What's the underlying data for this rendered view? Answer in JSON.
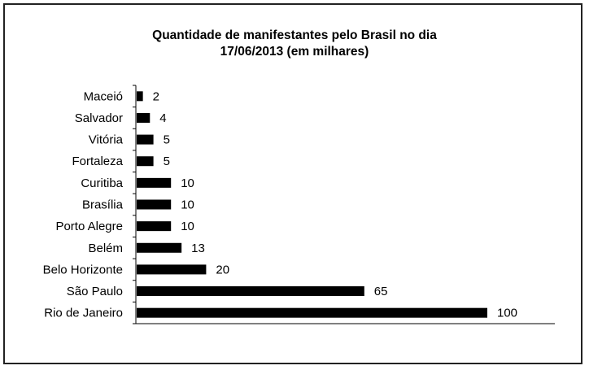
{
  "chart_data": {
    "type": "bar",
    "orientation": "horizontal",
    "title": [
      "Quantidade de manifestantes pelo Brasil no dia",
      "17/06/2013 (em milhares)"
    ],
    "categories": [
      "Maceió",
      "Salvador",
      "Vitória",
      "Fortaleza",
      "Curitiba",
      "Brasília",
      "Porto Alegre",
      "Belém",
      "Belo Horizonte",
      "São Paulo",
      "Rio de Janeiro"
    ],
    "values": [
      2,
      4,
      5,
      5,
      10,
      10,
      10,
      13,
      20,
      65,
      100
    ],
    "data_labels": [
      "2",
      "4",
      "5",
      "5",
      "10",
      "10",
      "10",
      "13",
      "20",
      "65",
      "100"
    ],
    "xlim": [
      0,
      100
    ],
    "bar_color": "#000000",
    "grid": false,
    "legend": "none"
  }
}
